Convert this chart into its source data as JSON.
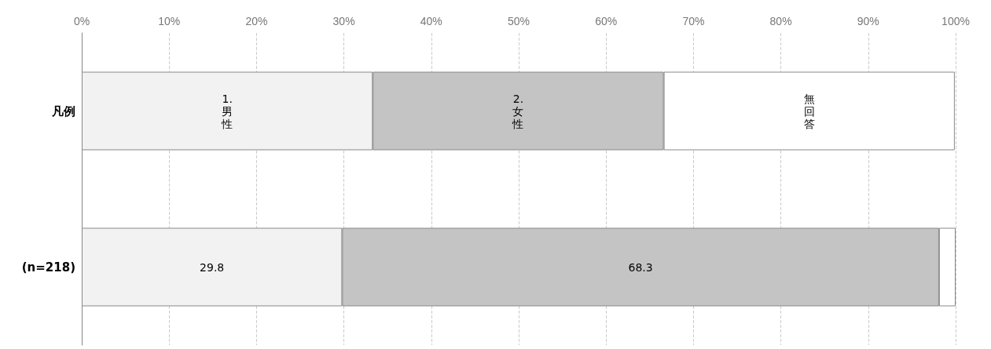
{
  "chart_data": {
    "type": "bar",
    "orientation": "horizontal",
    "stacked": true,
    "categories": [
      "凡例",
      "(n=218)"
    ],
    "series": [
      {
        "name": "1.男性",
        "color": "#f2f2f2",
        "values": [
          33.3,
          29.8
        ],
        "value_labels": [
          null,
          "29.8"
        ]
      },
      {
        "name": "2.女性",
        "color": "#c4c4c4",
        "values": [
          33.3,
          68.3
        ],
        "value_labels": [
          null,
          "68.3"
        ]
      },
      {
        "name": "無回答",
        "color": "#ffffff",
        "values": [
          33.3,
          1.9
        ],
        "value_labels": [
          null,
          null
        ]
      }
    ],
    "xlim": [
      0,
      100
    ],
    "xticks": [
      {
        "value": 0,
        "label": "0%"
      },
      {
        "value": 10,
        "label": "10%"
      },
      {
        "value": 20,
        "label": "20%"
      },
      {
        "value": 30,
        "label": "30%"
      },
      {
        "value": 40,
        "label": "40%"
      },
      {
        "value": 50,
        "label": "50%"
      },
      {
        "value": 60,
        "label": "60%"
      },
      {
        "value": 70,
        "label": "70%"
      },
      {
        "value": 80,
        "label": "80%"
      },
      {
        "value": 90,
        "label": "90%"
      },
      {
        "value": 100,
        "label": "100%"
      }
    ],
    "grid": "x",
    "legend": "top"
  }
}
